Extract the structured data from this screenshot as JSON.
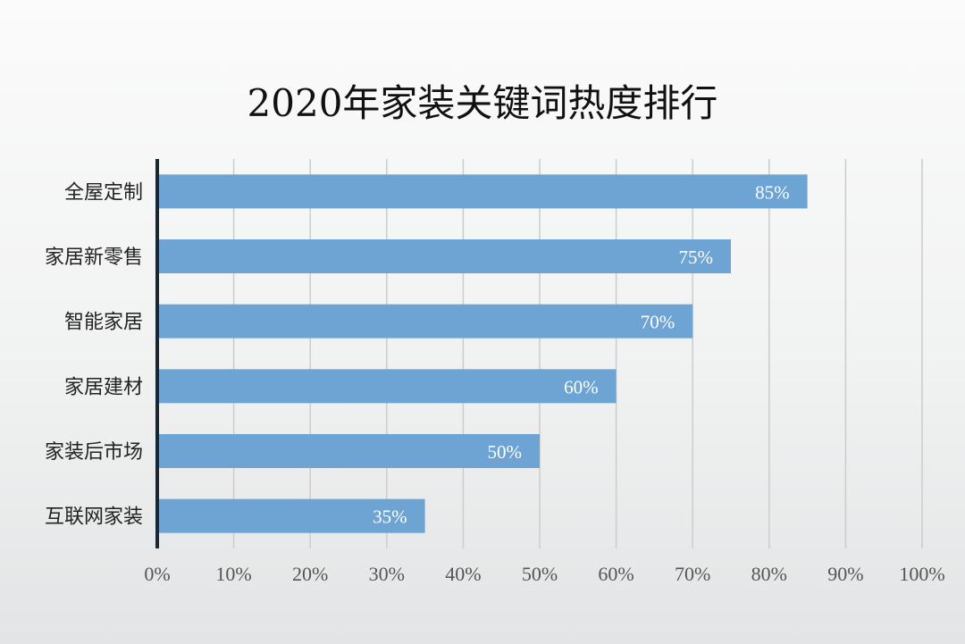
{
  "chart_data": {
    "type": "bar",
    "orientation": "horizontal",
    "title": "2020年家装关键词热度排行",
    "categories": [
      "全屋定制",
      "家居新零售",
      "智能家居",
      "家居建材",
      "家装后市场",
      "互联网家装"
    ],
    "values": [
      85,
      75,
      70,
      60,
      50,
      35
    ],
    "data_labels": [
      "85%",
      "75%",
      "70%",
      "60%",
      "50%",
      "35%"
    ],
    "xlim": [
      0,
      100
    ],
    "x_ticks": [
      0,
      10,
      20,
      30,
      40,
      50,
      60,
      70,
      80,
      90,
      100
    ],
    "x_tick_labels": [
      "0%",
      "10%",
      "20%",
      "30%",
      "40%",
      "50%",
      "60%",
      "70%",
      "80%",
      "90%",
      "100%"
    ],
    "grid": true,
    "legend": "none",
    "colors": {
      "bar": "#6ea4d4",
      "gridline": "#cccccc",
      "axis": "#1c2633",
      "data_label": "#ffffff"
    }
  }
}
